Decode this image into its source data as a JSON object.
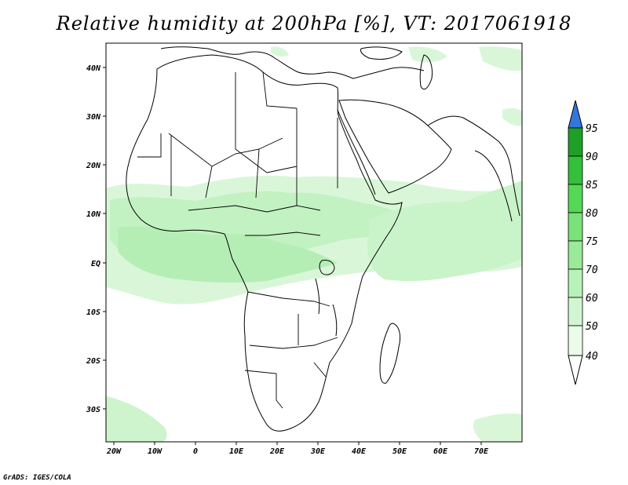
{
  "title": "Relative humidity at 200hPa [%], VT: 2017061918",
  "credit": "GrADS: IGES/COLA",
  "map": {
    "region": "Africa and Middle East",
    "lon_range": [
      -22,
      80
    ],
    "lat_range": [
      -37,
      46
    ],
    "lat_ticks": [
      {
        "value": 40,
        "label": "40N"
      },
      {
        "value": 30,
        "label": "30N"
      },
      {
        "value": 20,
        "label": "20N"
      },
      {
        "value": 10,
        "label": "10N"
      },
      {
        "value": 0,
        "label": "EQ"
      },
      {
        "value": -10,
        "label": "10S"
      },
      {
        "value": -20,
        "label": "20S"
      },
      {
        "value": -30,
        "label": "30S"
      }
    ],
    "lon_ticks": [
      {
        "value": -20,
        "label": "20W"
      },
      {
        "value": -10,
        "label": "10W"
      },
      {
        "value": 0,
        "label": "0"
      },
      {
        "value": 10,
        "label": "10E"
      },
      {
        "value": 20,
        "label": "20E"
      },
      {
        "value": 30,
        "label": "30E"
      },
      {
        "value": 40,
        "label": "40E"
      },
      {
        "value": 50,
        "label": "50E"
      },
      {
        "value": 60,
        "label": "60E"
      },
      {
        "value": 70,
        "label": "70E"
      }
    ]
  },
  "colorbar": {
    "levels": [
      {
        "label": "95",
        "color": "#3377dd"
      },
      {
        "label": "90",
        "color": "#1e9f26"
      },
      {
        "label": "85",
        "color": "#33c03a"
      },
      {
        "label": "80",
        "color": "#55d855"
      },
      {
        "label": "75",
        "color": "#7ae27a"
      },
      {
        "label": "70",
        "color": "#9aea9a"
      },
      {
        "label": "60",
        "color": "#b8f2b8"
      },
      {
        "label": "50",
        "color": "#d2f6d2"
      },
      {
        "label": "40",
        "color": "#ebfcea"
      }
    ],
    "top_color": "#3377dd",
    "bottom_color": "#ffffff"
  },
  "humidity_fields": [
    {
      "band": "west_africa_belt",
      "level": "60"
    },
    {
      "band": "equatorial_belt",
      "level": "50"
    },
    {
      "band": "indian_ocean_belt",
      "level": "60"
    },
    {
      "band": "southern_atlantic",
      "level": "50"
    }
  ]
}
